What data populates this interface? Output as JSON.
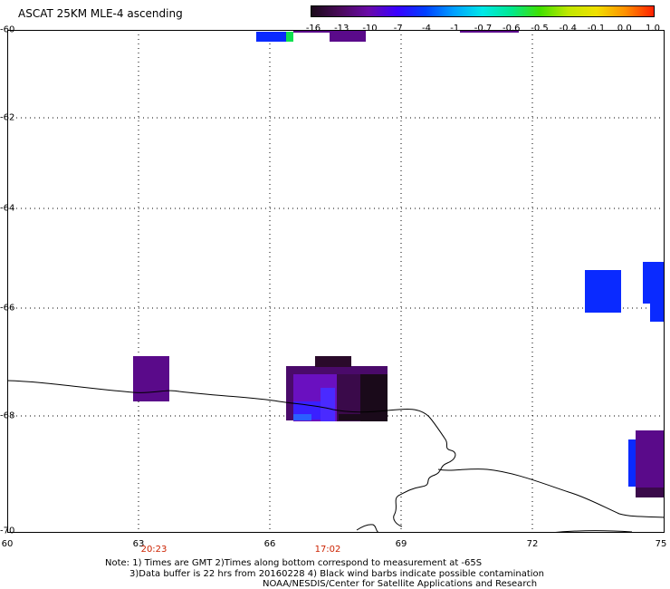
{
  "title": "ASCAT 25KM MLE-4 ascending",
  "colorbar": {
    "labels": [
      "-16",
      "-13",
      "-10",
      "-7",
      "-4",
      "-1",
      "-0.7",
      "-0.6",
      "-0.5",
      "-0.4",
      "-0.1",
      "0.0",
      "1.0"
    ],
    "colors": [
      "#1a0a1a",
      "#4a0a5a",
      "#6a0aa8",
      "#3a00ff",
      "#0040ff",
      "#00a0ff",
      "#00e8e8",
      "#00e890",
      "#40e000",
      "#c0e800",
      "#f0e000",
      "#ff9000",
      "#ff2000"
    ]
  },
  "axes": {
    "lat_labels": [
      "-60",
      "-62",
      "-64",
      "-66",
      "-68",
      "-70"
    ],
    "lon_labels": [
      "60",
      "63",
      "66",
      "69",
      "72",
      "75"
    ]
  },
  "time_labels": [
    "20:23",
    "17:02"
  ],
  "notes": [
    "Note: 1) Times are GMT 2)Times along bottom correspond to measurement at -65S",
    "3)Data buffer is 22 hrs from 20160228 4) Black wind barbs indicate possible contamination",
    "NOAA/NESDIS/Center for Satellite Applications and Research"
  ],
  "colors": {
    "coastline": "#000000",
    "grid": "#000000",
    "time_label": "#cc2200"
  }
}
